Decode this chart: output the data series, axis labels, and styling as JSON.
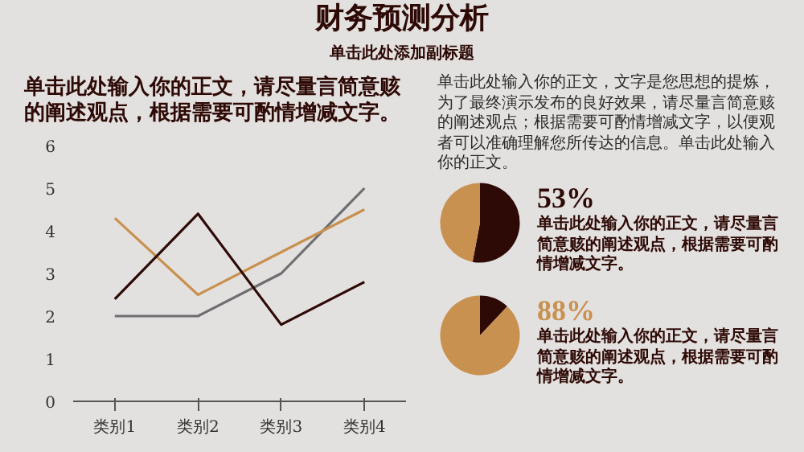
{
  "chart_data": [
    {
      "type": "line",
      "title": "财务预测分析",
      "subtitle": "单击此处添加副标题",
      "annotations": [
        "单击此处输入你的正文，请尽量言简意赅的阐述观点，根据需要可酌情增减文字。"
      ],
      "categories": [
        "类别1",
        "类别2",
        "类别3",
        "类别4"
      ],
      "ylim": [
        0,
        6
      ],
      "yticks": [
        0,
        1,
        2,
        3,
        4,
        5,
        6
      ],
      "series": [
        {
          "color": "#6e6d70",
          "values": [
            2.0,
            2.0,
            3.0,
            5.0
          ]
        },
        {
          "color": "#c8914f",
          "values": [
            4.3,
            2.5,
            3.5,
            4.5
          ]
        },
        {
          "color": "#2e0a06",
          "values": [
            2.4,
            4.4,
            1.8,
            2.8
          ]
        }
      ]
    },
    {
      "type": "pie",
      "annotations": [
        "单击此处输入你的正文，文字是您思想的提炼，为了最终演示发布的良好效果，请尽量言简意赅的阐述观点；根据需要可酌情增减文字，以便观者可以准确理解您所传达的信息。单击此处输入你的正文。",
        "单击此处输入你的正文，请尽量言简意赅的阐述观点，根据需要可酌情增减文字。"
      ],
      "categories": [
        null,
        null
      ],
      "values": [
        53,
        47
      ],
      "colors": [
        "#2e0a06",
        "#c8914f"
      ],
      "value_labels": [
        "53%",
        null
      ]
    },
    {
      "type": "pie",
      "annotations": [
        "单击此处输入你的正文，请尽量言简意赅的阐述观点，根据需要可酌情增减文字。"
      ],
      "categories": [
        null,
        null
      ],
      "values": [
        12,
        88
      ],
      "colors": [
        "#2e0a06",
        "#c8914f"
      ],
      "value_labels": [
        null,
        "88%"
      ]
    }
  ]
}
